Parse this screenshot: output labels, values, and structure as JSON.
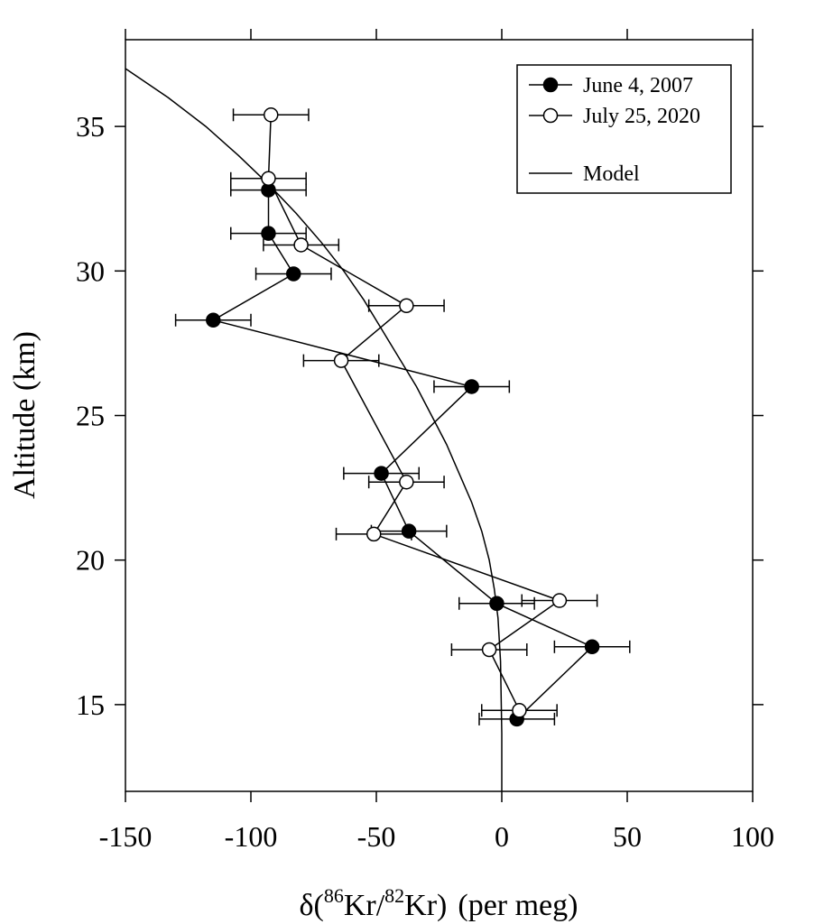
{
  "chart_data": {
    "type": "scatter",
    "title": "",
    "xlabel": {
      "delta": "δ(",
      "sup1": "86",
      "kr1": "Kr/",
      "sup2": "82",
      "kr2": "Kr)",
      "unit": "(per meg)"
    },
    "ylabel": "Altitude (km)",
    "xlim": [
      -150,
      100
    ],
    "ylim": [
      12,
      38
    ],
    "xticks": [
      -150,
      -100,
      -50,
      0,
      50,
      100
    ],
    "xtick_labels": [
      "-150",
      "-100",
      "-50",
      "0",
      "50",
      "100"
    ],
    "yticks": [
      15,
      20,
      25,
      30,
      35
    ],
    "ytick_labels": [
      "15",
      "20",
      "25",
      "30",
      "35"
    ],
    "legend_position": "top-right",
    "series": [
      {
        "name": "June 4, 2007",
        "marker": "filled-circle",
        "points": [
          {
            "y": 32.8,
            "x": -93,
            "err": 15
          },
          {
            "y": 31.3,
            "x": -93,
            "err": 15
          },
          {
            "y": 29.9,
            "x": -83,
            "err": 15
          },
          {
            "y": 28.3,
            "x": -115,
            "err": 15
          },
          {
            "y": 26.0,
            "x": -12,
            "err": 15
          },
          {
            "y": 23.0,
            "x": -48,
            "err": 15
          },
          {
            "y": 21.0,
            "x": -37,
            "err": 15
          },
          {
            "y": 18.5,
            "x": -2,
            "err": 15
          },
          {
            "y": 17.0,
            "x": 36,
            "err": 15
          },
          {
            "y": 14.5,
            "x": 6,
            "err": 15
          }
        ]
      },
      {
        "name": "July 25, 2020",
        "marker": "open-circle",
        "points": [
          {
            "y": 35.4,
            "x": -92,
            "err": 15
          },
          {
            "y": 33.2,
            "x": -93,
            "err": 15
          },
          {
            "y": 30.9,
            "x": -80,
            "err": 15
          },
          {
            "y": 28.8,
            "x": -38,
            "err": 15
          },
          {
            "y": 26.9,
            "x": -64,
            "err": 15
          },
          {
            "y": 22.7,
            "x": -38,
            "err": 15
          },
          {
            "y": 20.9,
            "x": -51,
            "err": 15
          },
          {
            "y": 18.6,
            "x": 23,
            "err": 15
          },
          {
            "y": 16.9,
            "x": -5,
            "err": 15
          },
          {
            "y": 14.8,
            "x": 7,
            "err": 15
          }
        ]
      },
      {
        "name": "Model",
        "marker": "line",
        "points": [
          {
            "x": -150,
            "y": 37.0
          },
          {
            "x": -133,
            "y": 36.0
          },
          {
            "x": -118,
            "y": 35.0
          },
          {
            "x": -105,
            "y": 34.0
          },
          {
            "x": -93,
            "y": 33.0
          },
          {
            "x": -82,
            "y": 32.0
          },
          {
            "x": -72,
            "y": 31.0
          },
          {
            "x": -63,
            "y": 30.0
          },
          {
            "x": -55,
            "y": 29.0
          },
          {
            "x": -48,
            "y": 28.0
          },
          {
            "x": -41,
            "y": 27.0
          },
          {
            "x": -34,
            "y": 26.0
          },
          {
            "x": -28,
            "y": 25.0
          },
          {
            "x": -22,
            "y": 24.0
          },
          {
            "x": -17,
            "y": 23.0
          },
          {
            "x": -12,
            "y": 22.0
          },
          {
            "x": -8,
            "y": 21.0
          },
          {
            "x": -5,
            "y": 20.0
          },
          {
            "x": -3,
            "y": 19.0
          },
          {
            "x": -1.5,
            "y": 18.0
          },
          {
            "x": -0.5,
            "y": 16.5
          },
          {
            "x": 0,
            "y": 14.0
          },
          {
            "x": 0,
            "y": 12.0
          }
        ]
      }
    ]
  }
}
